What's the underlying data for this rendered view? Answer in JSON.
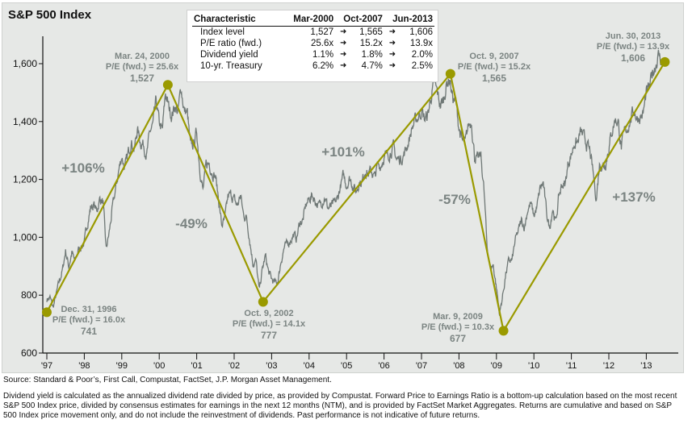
{
  "chart_data": {
    "type": "line",
    "title": "S&P 500 Index",
    "xlabel": "",
    "ylabel": "",
    "ylim": [
      600,
      1700
    ],
    "yticks": [
      600,
      800,
      1000,
      1200,
      1400,
      1600
    ],
    "ytick_labels": [
      "600",
      "800",
      "1,000",
      "1,200",
      "1,400",
      "1,600"
    ],
    "xtick_labels": [
      "'97",
      "'98",
      "'99",
      "'00",
      "'01",
      "'02",
      "'03",
      "'04",
      "'05",
      "'06",
      "'07",
      "'08",
      "'09",
      "'10",
      "'11",
      "'12",
      "'13"
    ],
    "grid": false,
    "colors": {
      "index": "#6f7876",
      "trend": "#9a9a00",
      "annotation": "#7b8482"
    },
    "series": [
      {
        "start": "1997-01",
        "frequency": "monthly",
        "values": [
          786,
          791,
          757,
          801,
          848,
          885,
          954,
          899,
          947,
          915,
          955,
          970,
          980,
          1049,
          1102,
          1112,
          1091,
          1134,
          1121,
          957,
          1017,
          1099,
          1164,
          1229,
          1280,
          1238,
          1286,
          1335,
          1302,
          1373,
          1329,
          1320,
          1283,
          1363,
          1389,
          1469,
          1394,
          1366,
          1499,
          1452,
          1421,
          1455,
          1431,
          1518,
          1437,
          1429,
          1315,
          1320,
          1366,
          1240,
          1160,
          1249,
          1256,
          1224,
          1211,
          1134,
          1041,
          1060,
          1139,
          1148,
          1130,
          1107,
          1147,
          1077,
          1067,
          990,
          912,
          916,
          815,
          886,
          936,
          880,
          856,
          841,
          848,
          917,
          964,
          975,
          990,
          1008,
          996,
          1051,
          1058,
          1112,
          1131,
          1145,
          1126,
          1107,
          1121,
          1141,
          1102,
          1104,
          1115,
          1130,
          1174,
          1212,
          1181,
          1204,
          1181,
          1157,
          1192,
          1191,
          1234,
          1220,
          1229,
          1207,
          1249,
          1248,
          1280,
          1281,
          1295,
          1311,
          1270,
          1270,
          1277,
          1304,
          1336,
          1378,
          1401,
          1418,
          1438,
          1407,
          1421,
          1482,
          1531,
          1503,
          1455,
          1474,
          1527,
          1549,
          1481,
          1468,
          1379,
          1331,
          1323,
          1386,
          1400,
          1280,
          1267,
          1283,
          1165,
          969,
          896,
          903,
          826,
          735,
          798,
          873,
          919,
          919,
          987,
          1021,
          1057,
          1036,
          1096,
          1115,
          1074,
          1104,
          1169,
          1187,
          1089,
          1031,
          1102,
          1049,
          1141,
          1183,
          1181,
          1258,
          1286,
          1327,
          1326,
          1364,
          1345,
          1321,
          1292,
          1219,
          1131,
          1253,
          1247,
          1258,
          1312,
          1366,
          1408,
          1398,
          1310,
          1362,
          1379,
          1407,
          1441,
          1412,
          1416,
          1426,
          1498,
          1515,
          1569,
          1598,
          1631,
          1606
        ]
      }
    ],
    "turning_points": [
      {
        "date": "1996-12-31",
        "value": 741,
        "lines": [
          "Dec. 31, 1996",
          "P/E (fwd.) = 16.0x",
          "741"
        ]
      },
      {
        "date": "2000-03-24",
        "value": 1527,
        "lines": [
          "Mar. 24, 2000",
          "P/E (fwd.) = 25.6x",
          "1,527"
        ]
      },
      {
        "date": "2002-10-09",
        "value": 777,
        "lines": [
          "Oct. 9, 2002",
          "P/E (fwd.) = 14.1x",
          "777"
        ]
      },
      {
        "date": "2007-10-09",
        "value": 1565,
        "lines": [
          "Oct. 9, 2007",
          "P/E (fwd.) = 15.2x",
          "1,565"
        ]
      },
      {
        "date": "2009-03-09",
        "value": 677,
        "lines": [
          "Mar. 9, 2009",
          "P/E (fwd.) = 10.3x",
          "677"
        ]
      },
      {
        "date": "2013-06-30",
        "value": 1606,
        "lines": [
          "Jun. 30, 2013",
          "P/E (fwd.) = 13.9x",
          "1,606"
        ]
      }
    ],
    "returns": [
      "+106%",
      "-49%",
      "+101%",
      "-57%",
      "+137%"
    ]
  },
  "table": {
    "headers": [
      "Characteristic",
      "Mar-2000",
      "Oct-2007",
      "Jun-2013"
    ],
    "rows": [
      [
        "Index level",
        "1,527",
        "1,565",
        "1,606"
      ],
      [
        "P/E ratio (fwd.)",
        "25.6x",
        "15.2x",
        "13.9x"
      ],
      [
        "Dividend yield",
        "1.1%",
        "1.8%",
        "2.0%"
      ],
      [
        "10-yr. Treasury",
        "6.2%",
        "4.7%",
        "2.5%"
      ]
    ]
  },
  "source": "Source: Standard & Poor’s, First Call, Compustat, FactSet, J.P. Morgan Asset Management.",
  "notes": "Dividend yield is calculated as the annualized dividend rate divided by price, as provided by Compustat. Forward Price to Earnings Ratio is a bottom-up calculation based on the most recent S&P 500 Index price, divided by consensus estimates for earnings in the next 12 months (NTM), and is provided by FactSet Market Aggregates. Returns are cumulative and based on S&P 500 Index price movement only, and do not include the reinvestment of dividends. Past performance is not indicative of future returns."
}
